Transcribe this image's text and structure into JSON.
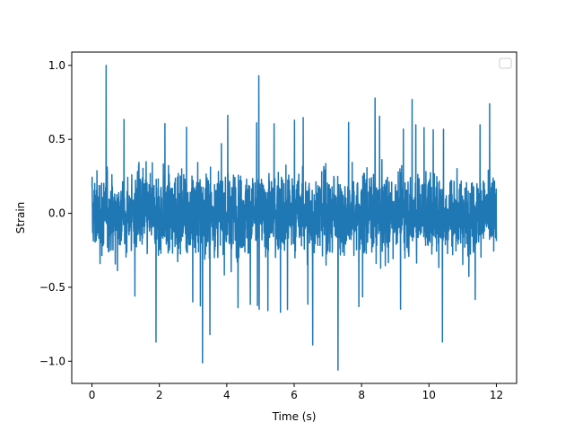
{
  "chart_data": {
    "type": "line",
    "title": "",
    "xlabel": "Time (s)",
    "ylabel": "Strain",
    "xlim": [
      -0.6,
      12.6
    ],
    "ylim": [
      -1.15,
      1.09
    ],
    "xticks": [
      0,
      2,
      4,
      6,
      8,
      10,
      12
    ],
    "xtick_labels": [
      "0",
      "2",
      "4",
      "6",
      "8",
      "10",
      "12"
    ],
    "yticks": [
      1.0,
      0.5,
      0.0,
      -0.5,
      -1.0
    ],
    "ytick_labels": [
      "1.0",
      "0.5",
      "0.0",
      "−0.5",
      "−1.0"
    ],
    "grid": false,
    "legend": {
      "placement": "top-right",
      "entries": []
    },
    "colors": {
      "series": "#1f77b4"
    },
    "series": [
      {
        "x_start": 0,
        "x_end": 12,
        "approx_envelope": {
          "typical": [
            -0.45,
            0.45
          ],
          "max": 1.0,
          "min": -1.06
        },
        "peaks": [
          {
            "x": 0.42,
            "y": 1.0
          },
          {
            "x": 4.95,
            "y": 0.93
          },
          {
            "x": 7.3,
            "y": -1.06
          },
          {
            "x": 3.28,
            "y": -1.01
          },
          {
            "x": 6.55,
            "y": -0.89
          },
          {
            "x": 1.9,
            "y": -0.87
          },
          {
            "x": 10.4,
            "y": -0.87
          },
          {
            "x": 3.5,
            "y": -0.82
          },
          {
            "x": 8.4,
            "y": 0.78
          },
          {
            "x": 9.5,
            "y": 0.77
          },
          {
            "x": 11.8,
            "y": 0.74
          }
        ]
      }
    ]
  }
}
